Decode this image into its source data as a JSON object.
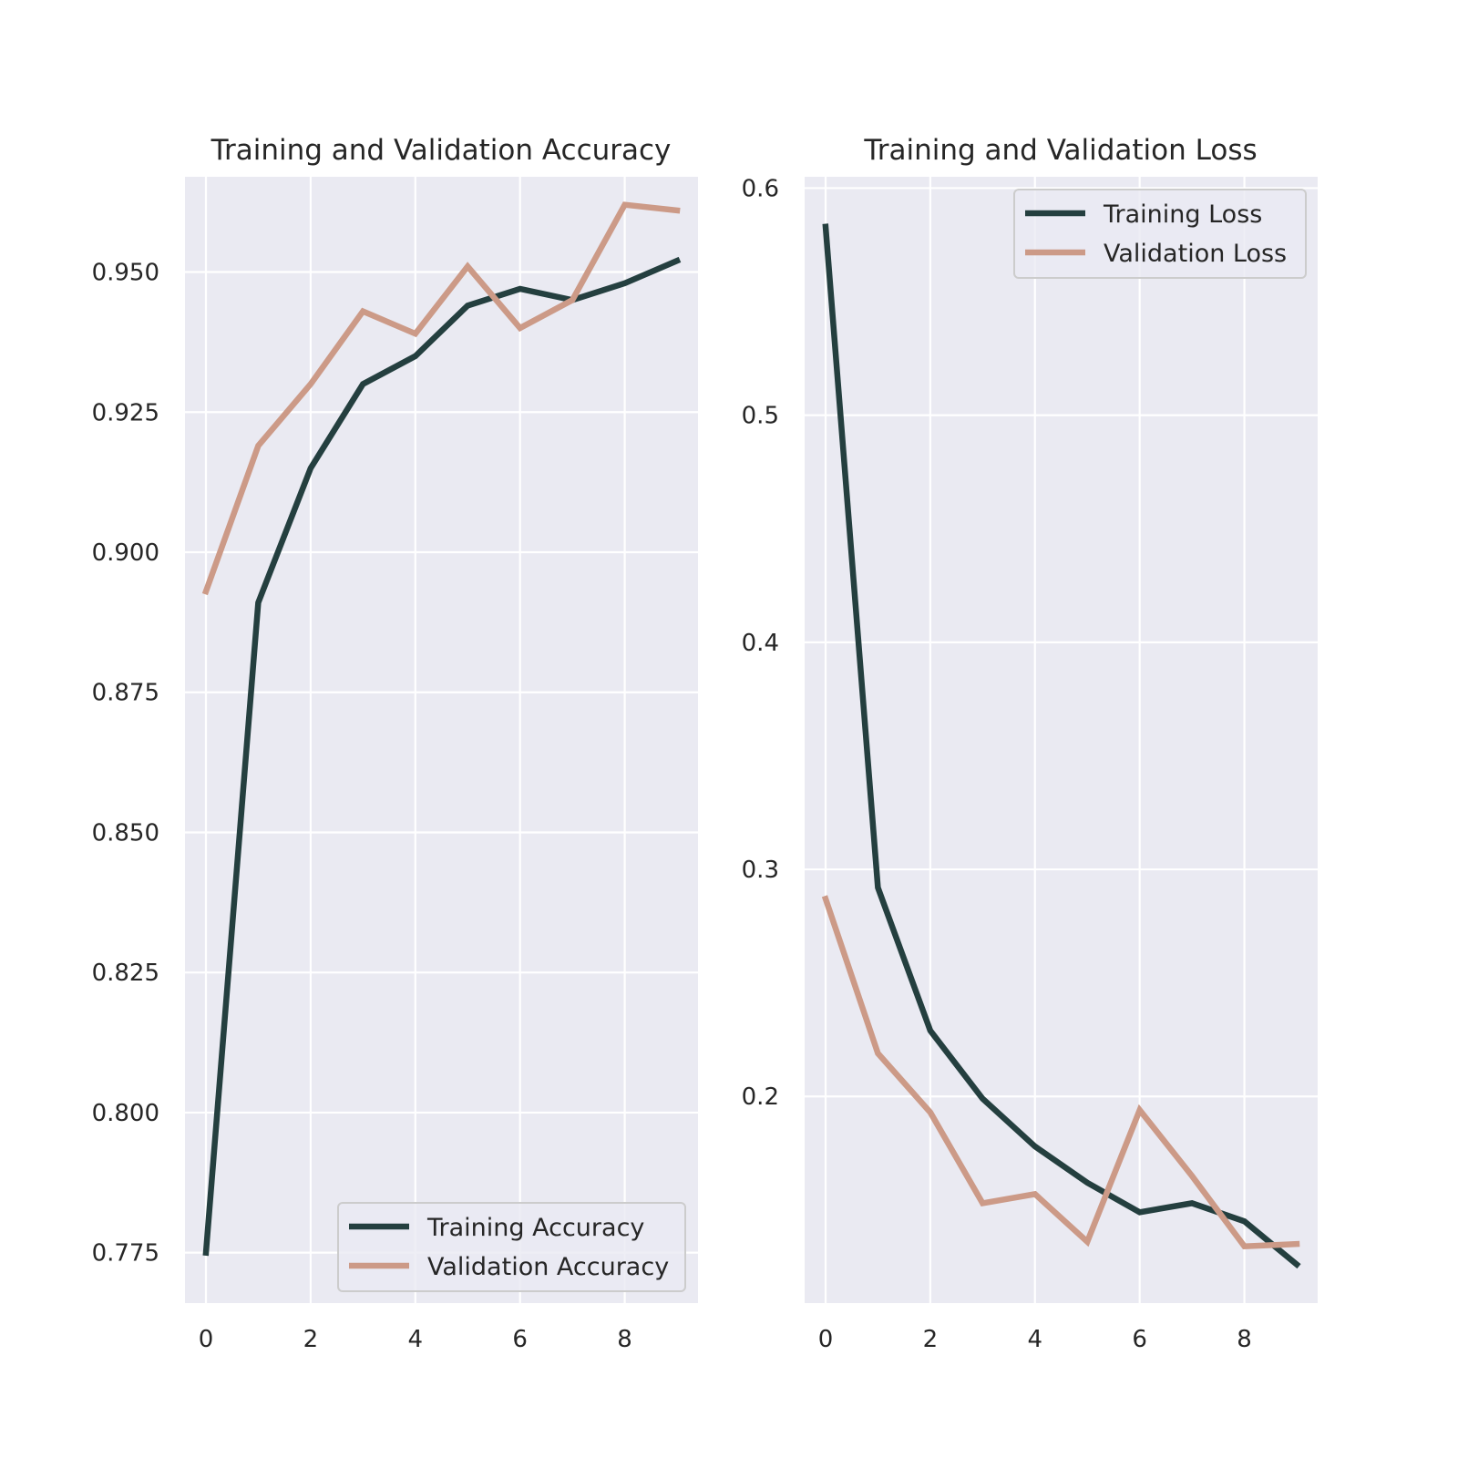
{
  "colors": {
    "training": "#243f3f",
    "validation": "#cc9a87",
    "panel_bg": "#eaeaf2",
    "grid": "#ffffff",
    "text": "#262626"
  },
  "chart_data": [
    {
      "type": "line",
      "title": "Training and Validation Accuracy",
      "x": [
        0,
        1,
        2,
        3,
        4,
        5,
        6,
        7,
        8,
        9
      ],
      "series": [
        {
          "name": "Training Accuracy",
          "values": [
            0.775,
            0.891,
            0.915,
            0.93,
            0.935,
            0.944,
            0.947,
            0.945,
            0.948,
            0.952
          ]
        },
        {
          "name": "Validation Accuracy",
          "values": [
            0.893,
            0.919,
            0.93,
            0.943,
            0.939,
            0.951,
            0.94,
            0.945,
            0.962,
            0.961
          ]
        }
      ],
      "xlim": [
        -0.4,
        9.4
      ],
      "ylim": [
        0.766,
        0.967
      ],
      "xticks": [
        0,
        2,
        4,
        6,
        8
      ],
      "xtick_labels": [
        "0",
        "2",
        "4",
        "6",
        "8"
      ],
      "yticks": [
        0.775,
        0.8,
        0.825,
        0.85,
        0.875,
        0.9,
        0.925,
        0.95
      ],
      "ytick_labels": [
        "0.775",
        "0.800",
        "0.825",
        "0.850",
        "0.875",
        "0.900",
        "0.925",
        "0.950"
      ],
      "grid": true,
      "legend_position": "lower-right"
    },
    {
      "type": "line",
      "title": "Training and Validation Loss",
      "x": [
        0,
        1,
        2,
        3,
        4,
        5,
        6,
        7,
        8,
        9
      ],
      "series": [
        {
          "name": "Training Loss",
          "values": [
            0.583,
            0.292,
            0.229,
            0.199,
            0.178,
            0.162,
            0.149,
            0.153,
            0.145,
            0.126
          ]
        },
        {
          "name": "Validation Loss",
          "values": [
            0.287,
            0.219,
            0.193,
            0.153,
            0.157,
            0.136,
            0.194,
            0.165,
            0.134,
            0.135
          ]
        }
      ],
      "xlim": [
        -0.4,
        9.4
      ],
      "ylim": [
        0.109,
        0.605
      ],
      "xticks": [
        0,
        2,
        4,
        6,
        8
      ],
      "xtick_labels": [
        "0",
        "2",
        "4",
        "6",
        "8"
      ],
      "yticks": [
        0.2,
        0.3,
        0.4,
        0.5,
        0.6
      ],
      "ytick_labels": [
        "0.2",
        "0.3",
        "0.4",
        "0.5",
        "0.6"
      ],
      "grid": true,
      "legend_position": "upper-right"
    }
  ]
}
